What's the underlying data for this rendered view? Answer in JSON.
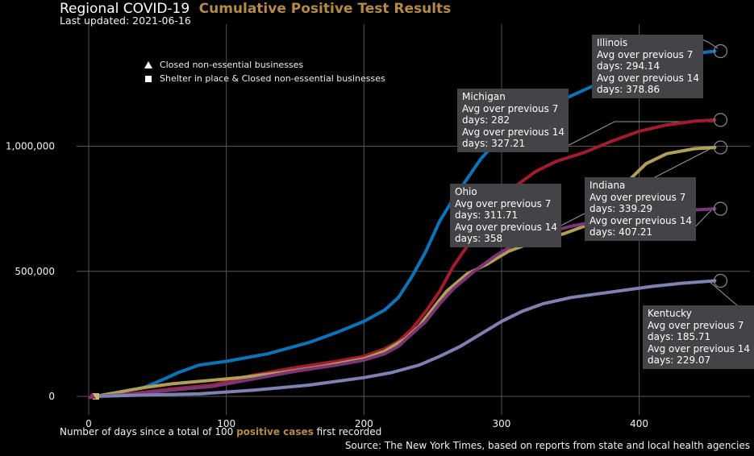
{
  "header": {
    "title_main": "Regional COVID-19",
    "title_accent": "Cumulative Positive Test Results",
    "updated": "Last updated: 2021-06-16"
  },
  "legend": {
    "items": [
      {
        "label": "Closed non-essential businesses",
        "icon": "triangle-icon"
      },
      {
        "label": "Shelter in place & Closed non-essential businesses",
        "icon": "square-icon"
      }
    ]
  },
  "footer": {
    "xlabel_pre": "Number of days since a total of 100",
    "xlabel_accent": "positive cases",
    "xlabel_post": "first recorded",
    "source": "Source: The New York Times, based on reports from state and local health agencies"
  },
  "colors": {
    "background": "#000000",
    "grid": "#555555",
    "accent": "#b58a49",
    "callout_bg": "#444448"
  },
  "chart_data": {
    "type": "line",
    "xlim": [
      -15,
      470
    ],
    "ylim": [
      -80000,
      1500000
    ],
    "xticks": [
      0,
      100,
      200,
      300,
      400
    ],
    "yticks": [
      0,
      500000,
      1000000
    ],
    "ytick_labels": [
      "0",
      "500,000",
      "1,000,000"
    ],
    "grid": true,
    "series": [
      {
        "name": "Illinois",
        "color": "#0a74b8",
        "points": [
          [
            5,
            0
          ],
          [
            20,
            15000
          ],
          [
            40,
            35000
          ],
          [
            55,
            70000
          ],
          [
            65,
            95000
          ],
          [
            80,
            125000
          ],
          [
            100,
            140000
          ],
          [
            130,
            170000
          ],
          [
            160,
            215000
          ],
          [
            180,
            255000
          ],
          [
            200,
            300000
          ],
          [
            215,
            345000
          ],
          [
            225,
            395000
          ],
          [
            235,
            480000
          ],
          [
            245,
            580000
          ],
          [
            255,
            700000
          ],
          [
            265,
            790000
          ],
          [
            275,
            870000
          ],
          [
            285,
            950000
          ],
          [
            295,
            1010000
          ],
          [
            310,
            1080000
          ],
          [
            330,
            1150000
          ],
          [
            350,
            1200000
          ],
          [
            370,
            1250000
          ],
          [
            390,
            1300000
          ],
          [
            410,
            1340000
          ],
          [
            430,
            1365000
          ],
          [
            455,
            1380000
          ]
        ],
        "callout": {
          "lines": [
            "Illinois",
            "Avg over previous 7",
            "days: 294.14",
            "Avg over previous 14",
            "days: 378.86"
          ]
        }
      },
      {
        "name": "Michigan",
        "color": "#a21c30",
        "points": [
          [
            5,
            0
          ],
          [
            30,
            10000
          ],
          [
            60,
            30000
          ],
          [
            90,
            45000
          ],
          [
            120,
            85000
          ],
          [
            150,
            115000
          ],
          [
            180,
            140000
          ],
          [
            200,
            160000
          ],
          [
            215,
            190000
          ],
          [
            225,
            220000
          ],
          [
            235,
            270000
          ],
          [
            245,
            340000
          ],
          [
            255,
            420000
          ],
          [
            265,
            520000
          ],
          [
            280,
            640000
          ],
          [
            295,
            750000
          ],
          [
            310,
            840000
          ],
          [
            325,
            900000
          ],
          [
            340,
            940000
          ],
          [
            360,
            975000
          ],
          [
            380,
            1020000
          ],
          [
            400,
            1060000
          ],
          [
            420,
            1085000
          ],
          [
            440,
            1100000
          ],
          [
            455,
            1105000
          ]
        ],
        "callout": {
          "lines": [
            "Michigan",
            "Avg over previous 7",
            "days: 282",
            "Avg over previous 14",
            "days: 327.21"
          ]
        }
      },
      {
        "name": "Ohio",
        "color": "#aea058",
        "points": [
          [
            5,
            0
          ],
          [
            20,
            15000
          ],
          [
            40,
            35000
          ],
          [
            60,
            50000
          ],
          [
            80,
            60000
          ],
          [
            110,
            75000
          ],
          [
            140,
            95000
          ],
          [
            170,
            120000
          ],
          [
            200,
            150000
          ],
          [
            215,
            180000
          ],
          [
            230,
            230000
          ],
          [
            240,
            280000
          ],
          [
            250,
            350000
          ],
          [
            260,
            420000
          ],
          [
            275,
            490000
          ],
          [
            290,
            530000
          ],
          [
            305,
            580000
          ],
          [
            325,
            620000
          ],
          [
            345,
            650000
          ],
          [
            360,
            680000
          ],
          [
            375,
            750000
          ],
          [
            390,
            850000
          ],
          [
            405,
            930000
          ],
          [
            420,
            970000
          ],
          [
            440,
            990000
          ],
          [
            455,
            995000
          ]
        ],
        "callout": {
          "lines": [
            "Ohio",
            "Avg over previous 7",
            "days: 311.71",
            "Avg over previous 14",
            "days: 358"
          ]
        }
      },
      {
        "name": "Indiana",
        "color": "#7b3574",
        "points": [
          [
            5,
            0
          ],
          [
            30,
            8000
          ],
          [
            60,
            25000
          ],
          [
            90,
            40000
          ],
          [
            120,
            70000
          ],
          [
            150,
            100000
          ],
          [
            180,
            125000
          ],
          [
            200,
            145000
          ],
          [
            215,
            170000
          ],
          [
            225,
            200000
          ],
          [
            235,
            250000
          ],
          [
            245,
            300000
          ],
          [
            255,
            370000
          ],
          [
            265,
            430000
          ],
          [
            280,
            500000
          ],
          [
            295,
            560000
          ],
          [
            310,
            610000
          ],
          [
            330,
            650000
          ],
          [
            350,
            680000
          ],
          [
            370,
            700000
          ],
          [
            390,
            715000
          ],
          [
            410,
            730000
          ],
          [
            430,
            742000
          ],
          [
            455,
            750000
          ]
        ],
        "callout": {
          "lines": [
            "Indiana",
            "Avg over previous 7",
            "days: 339.29",
            "Avg over previous 14",
            "days: 407.21"
          ]
        }
      },
      {
        "name": "Kentucky",
        "color": "#7f80b3",
        "points": [
          [
            5,
            0
          ],
          [
            40,
            5000
          ],
          [
            80,
            10000
          ],
          [
            120,
            25000
          ],
          [
            160,
            45000
          ],
          [
            200,
            75000
          ],
          [
            220,
            95000
          ],
          [
            240,
            125000
          ],
          [
            255,
            160000
          ],
          [
            270,
            200000
          ],
          [
            285,
            250000
          ],
          [
            300,
            300000
          ],
          [
            315,
            340000
          ],
          [
            330,
            370000
          ],
          [
            350,
            395000
          ],
          [
            370,
            410000
          ],
          [
            390,
            425000
          ],
          [
            410,
            440000
          ],
          [
            430,
            452000
          ],
          [
            455,
            462000
          ]
        ],
        "callout": {
          "lines": [
            "Kentucky",
            "Avg over previous 7",
            "days: 185.71",
            "Avg over previous 14",
            "days: 229.07"
          ]
        }
      }
    ]
  }
}
